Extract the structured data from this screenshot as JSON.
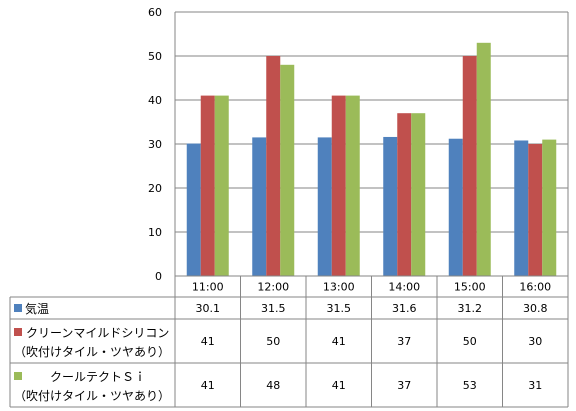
{
  "chart_data": {
    "type": "bar",
    "categories": [
      "11:00",
      "12:00",
      "13:00",
      "14:00",
      "15:00",
      "16:00"
    ],
    "ylim": [
      0,
      60
    ],
    "yticks": [
      0,
      10,
      20,
      30,
      40,
      50,
      60
    ],
    "grid": true,
    "legend": "data-table",
    "series": [
      {
        "name": "気温",
        "values": [
          30.1,
          31.5,
          31.5,
          31.6,
          31.2,
          30.8
        ],
        "display": [
          "30.1",
          "31.5",
          "31.5",
          "31.6",
          "31.2",
          "30.8"
        ],
        "color": "#4F81BD",
        "label_lines": [
          "気温"
        ]
      },
      {
        "name": "クリーンマイルドシリコン（吹付けタイル・ツヤあり）",
        "values": [
          41,
          50,
          41,
          37,
          50,
          30
        ],
        "display": [
          "41",
          "50",
          "41",
          "37",
          "50",
          "30"
        ],
        "color": "#C0504D",
        "label_lines": [
          "クリーンマイルドシリコン",
          "（吹付けタイル・ツヤあり）"
        ]
      },
      {
        "name": "クールテクトＳｉ（吹付けタイル・ツヤあり）",
        "values": [
          41,
          48,
          41,
          37,
          53,
          31
        ],
        "display": [
          "41",
          "48",
          "41",
          "37",
          "53",
          "31"
        ],
        "color": "#9BBB59",
        "label_lines": [
          "クールテクトＳｉ",
          "（吹付けタイル・ツヤあり）"
        ]
      }
    ]
  }
}
